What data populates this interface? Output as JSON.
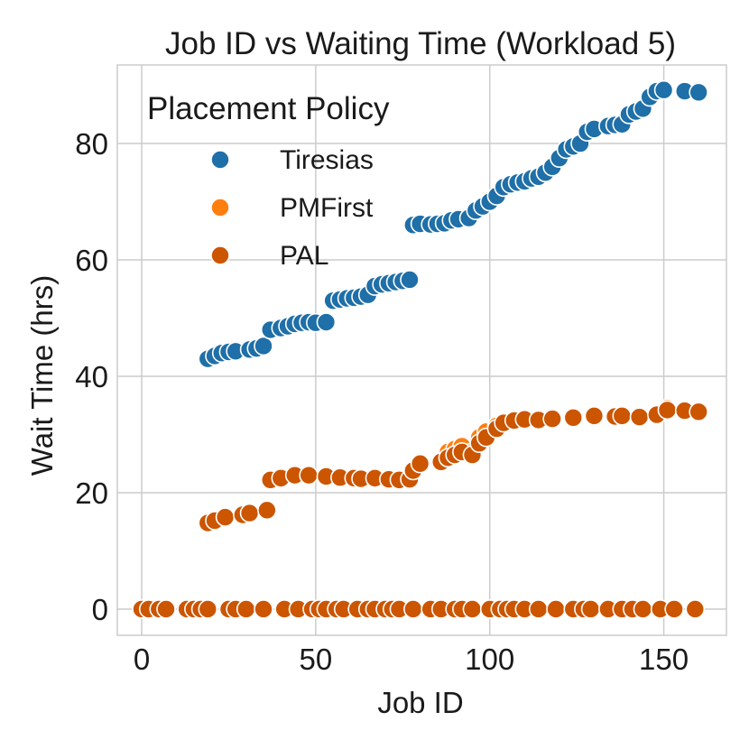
{
  "chart_data": {
    "type": "scatter",
    "title": "Job ID vs Waiting Time (Workload 5)",
    "xlabel": "Job ID",
    "ylabel": "Wait Time (hrs)",
    "xlim": [
      -7,
      168
    ],
    "ylim": [
      -4.5,
      93.5
    ],
    "xticks": [
      0,
      50,
      100,
      150
    ],
    "yticks": [
      0,
      20,
      40,
      60,
      80
    ],
    "grid": true,
    "legend": {
      "title": "Placement Policy",
      "placement": "top-left"
    },
    "series": [
      {
        "name": "Tiresias",
        "color": "#1f6fa8",
        "points": [
          [
            19,
            43
          ],
          [
            21,
            43.5
          ],
          [
            23,
            44
          ],
          [
            25,
            44.2
          ],
          [
            27,
            44.3
          ],
          [
            31,
            44.6
          ],
          [
            33,
            44.8
          ],
          [
            35,
            45.2
          ],
          [
            37,
            48
          ],
          [
            40,
            48.3
          ],
          [
            42,
            48.6
          ],
          [
            44,
            49
          ],
          [
            46,
            49.2
          ],
          [
            48,
            49.3
          ],
          [
            50,
            49.2
          ],
          [
            53,
            49.3
          ],
          [
            55,
            53
          ],
          [
            57,
            53.2
          ],
          [
            59,
            53.4
          ],
          [
            61,
            53.5
          ],
          [
            63,
            53.7
          ],
          [
            65,
            54
          ],
          [
            67,
            55.5
          ],
          [
            69,
            55.8
          ],
          [
            71,
            56
          ],
          [
            73,
            56.2
          ],
          [
            75,
            56.4
          ],
          [
            77,
            56.6
          ],
          [
            78,
            66
          ],
          [
            80,
            66.2
          ],
          [
            83,
            66.1
          ],
          [
            85,
            66.2
          ],
          [
            87,
            66.3
          ],
          [
            89,
            66.8
          ],
          [
            91,
            67
          ],
          [
            94,
            67.2
          ],
          [
            96,
            68.5
          ],
          [
            98,
            69.2
          ],
          [
            100,
            70
          ],
          [
            102,
            71
          ],
          [
            104,
            72.5
          ],
          [
            106,
            73
          ],
          [
            108,
            73.3
          ],
          [
            110,
            73.5
          ],
          [
            112,
            74
          ],
          [
            114,
            74.3
          ],
          [
            116,
            75
          ],
          [
            118,
            76
          ],
          [
            120,
            77.5
          ],
          [
            122,
            79
          ],
          [
            124,
            79.5
          ],
          [
            126,
            80
          ],
          [
            128,
            82
          ],
          [
            130,
            82.5
          ],
          [
            134,
            83
          ],
          [
            136,
            83.2
          ],
          [
            138,
            83.3
          ],
          [
            140,
            85
          ],
          [
            142,
            85.5
          ],
          [
            144,
            86
          ],
          [
            146,
            88
          ],
          [
            148,
            89
          ],
          [
            150,
            89.2
          ],
          [
            156,
            89
          ],
          [
            160,
            88.8
          ]
        ]
      },
      {
        "name": "PMFirst",
        "color": "#ff7f0e",
        "points": [
          [
            0,
            0
          ],
          [
            2,
            0
          ],
          [
            5,
            0
          ],
          [
            7,
            0
          ],
          [
            13,
            0
          ],
          [
            15,
            0
          ],
          [
            17,
            0
          ],
          [
            19,
            0
          ],
          [
            25,
            0
          ],
          [
            27,
            0
          ],
          [
            30,
            0
          ],
          [
            35,
            0
          ],
          [
            41,
            0
          ],
          [
            45,
            0
          ],
          [
            49,
            0
          ],
          [
            51,
            0
          ],
          [
            53,
            0
          ],
          [
            56,
            0
          ],
          [
            58,
            0
          ],
          [
            62,
            0
          ],
          [
            65,
            0
          ],
          [
            67,
            0
          ],
          [
            70,
            0
          ],
          [
            72,
            0
          ],
          [
            74,
            0
          ],
          [
            78,
            0
          ],
          [
            83,
            0
          ],
          [
            86,
            0
          ],
          [
            90,
            0
          ],
          [
            92,
            0
          ],
          [
            95,
            0
          ],
          [
            100,
            0
          ],
          [
            103,
            0
          ],
          [
            105,
            0
          ],
          [
            107,
            0
          ],
          [
            110,
            0
          ],
          [
            114,
            0
          ],
          [
            119,
            0
          ],
          [
            124,
            0
          ],
          [
            127,
            0
          ],
          [
            129,
            0
          ],
          [
            134,
            0
          ],
          [
            138,
            0
          ],
          [
            141,
            0
          ],
          [
            144,
            0
          ],
          [
            149,
            0
          ],
          [
            153,
            0
          ],
          [
            159,
            0
          ],
          [
            19,
            14.8
          ],
          [
            21,
            15.2
          ],
          [
            24,
            15.8
          ],
          [
            29,
            16.2
          ],
          [
            31,
            16.5
          ],
          [
            36,
            17
          ],
          [
            37,
            22.2
          ],
          [
            40,
            22.5
          ],
          [
            44,
            23
          ],
          [
            48,
            23
          ],
          [
            53,
            22.8
          ],
          [
            57,
            22.6
          ],
          [
            61,
            22.5
          ],
          [
            63,
            22.4
          ],
          [
            67,
            22.5
          ],
          [
            71,
            22.3
          ],
          [
            74,
            22.2
          ],
          [
            77,
            22.3
          ],
          [
            78,
            24
          ],
          [
            80,
            25
          ],
          [
            86,
            25.5
          ],
          [
            88,
            27
          ],
          [
            90,
            27.5
          ],
          [
            92,
            28
          ],
          [
            95,
            27
          ],
          [
            97,
            29.5
          ],
          [
            99,
            30.5
          ],
          [
            102,
            31.5
          ],
          [
            104,
            32
          ],
          [
            107,
            32.5
          ],
          [
            110,
            32.8
          ],
          [
            114,
            32.6
          ],
          [
            118,
            32.8
          ],
          [
            124,
            33
          ],
          [
            130,
            33.3
          ],
          [
            136,
            33.2
          ],
          [
            138,
            33.3
          ],
          [
            143,
            33.1
          ],
          [
            148,
            33.6
          ],
          [
            151,
            34.5
          ],
          [
            156,
            34.3
          ],
          [
            160,
            34
          ]
        ]
      },
      {
        "name": "PAL",
        "color": "#cc5500",
        "points": [
          [
            0,
            0
          ],
          [
            2,
            0
          ],
          [
            5,
            0
          ],
          [
            7,
            0
          ],
          [
            13,
            0
          ],
          [
            15,
            0
          ],
          [
            17,
            0
          ],
          [
            19,
            0
          ],
          [
            25,
            0
          ],
          [
            27,
            0
          ],
          [
            30,
            0
          ],
          [
            35,
            0
          ],
          [
            41,
            0
          ],
          [
            45,
            0
          ],
          [
            49,
            0
          ],
          [
            51,
            0
          ],
          [
            53,
            0
          ],
          [
            56,
            0
          ],
          [
            58,
            0
          ],
          [
            62,
            0
          ],
          [
            65,
            0
          ],
          [
            67,
            0
          ],
          [
            70,
            0
          ],
          [
            72,
            0
          ],
          [
            74,
            0
          ],
          [
            78,
            0
          ],
          [
            83,
            0
          ],
          [
            86,
            0
          ],
          [
            90,
            0
          ],
          [
            92,
            0
          ],
          [
            95,
            0
          ],
          [
            100,
            0
          ],
          [
            103,
            0
          ],
          [
            105,
            0
          ],
          [
            107,
            0
          ],
          [
            110,
            0
          ],
          [
            114,
            0
          ],
          [
            119,
            0
          ],
          [
            124,
            0
          ],
          [
            127,
            0
          ],
          [
            129,
            0
          ],
          [
            134,
            0
          ],
          [
            138,
            0
          ],
          [
            141,
            0
          ],
          [
            144,
            0
          ],
          [
            149,
            0
          ],
          [
            153,
            0
          ],
          [
            159,
            0
          ],
          [
            19,
            14.8
          ],
          [
            21,
            15.2
          ],
          [
            24,
            15.8
          ],
          [
            29,
            16.2
          ],
          [
            31,
            16.5
          ],
          [
            36,
            17
          ],
          [
            37,
            22.2
          ],
          [
            40,
            22.5
          ],
          [
            44,
            23
          ],
          [
            48,
            23
          ],
          [
            53,
            22.8
          ],
          [
            57,
            22.6
          ],
          [
            61,
            22.5
          ],
          [
            63,
            22.4
          ],
          [
            67,
            22.5
          ],
          [
            71,
            22.3
          ],
          [
            74,
            22.2
          ],
          [
            77,
            22.3
          ],
          [
            78,
            23.8
          ],
          [
            80,
            25
          ],
          [
            86,
            25.3
          ],
          [
            88,
            26
          ],
          [
            90,
            26.5
          ],
          [
            92,
            27
          ],
          [
            95,
            26.5
          ],
          [
            97,
            28.5
          ],
          [
            99,
            29.5
          ],
          [
            102,
            31
          ],
          [
            104,
            32
          ],
          [
            107,
            32.4
          ],
          [
            110,
            32.6
          ],
          [
            114,
            32.5
          ],
          [
            118,
            32.7
          ],
          [
            124,
            32.9
          ],
          [
            130,
            33.2
          ],
          [
            136,
            33.1
          ],
          [
            138,
            33.2
          ],
          [
            143,
            33
          ],
          [
            148,
            33.4
          ],
          [
            151,
            34.2
          ],
          [
            156,
            34.1
          ],
          [
            160,
            33.9
          ]
        ]
      }
    ]
  }
}
